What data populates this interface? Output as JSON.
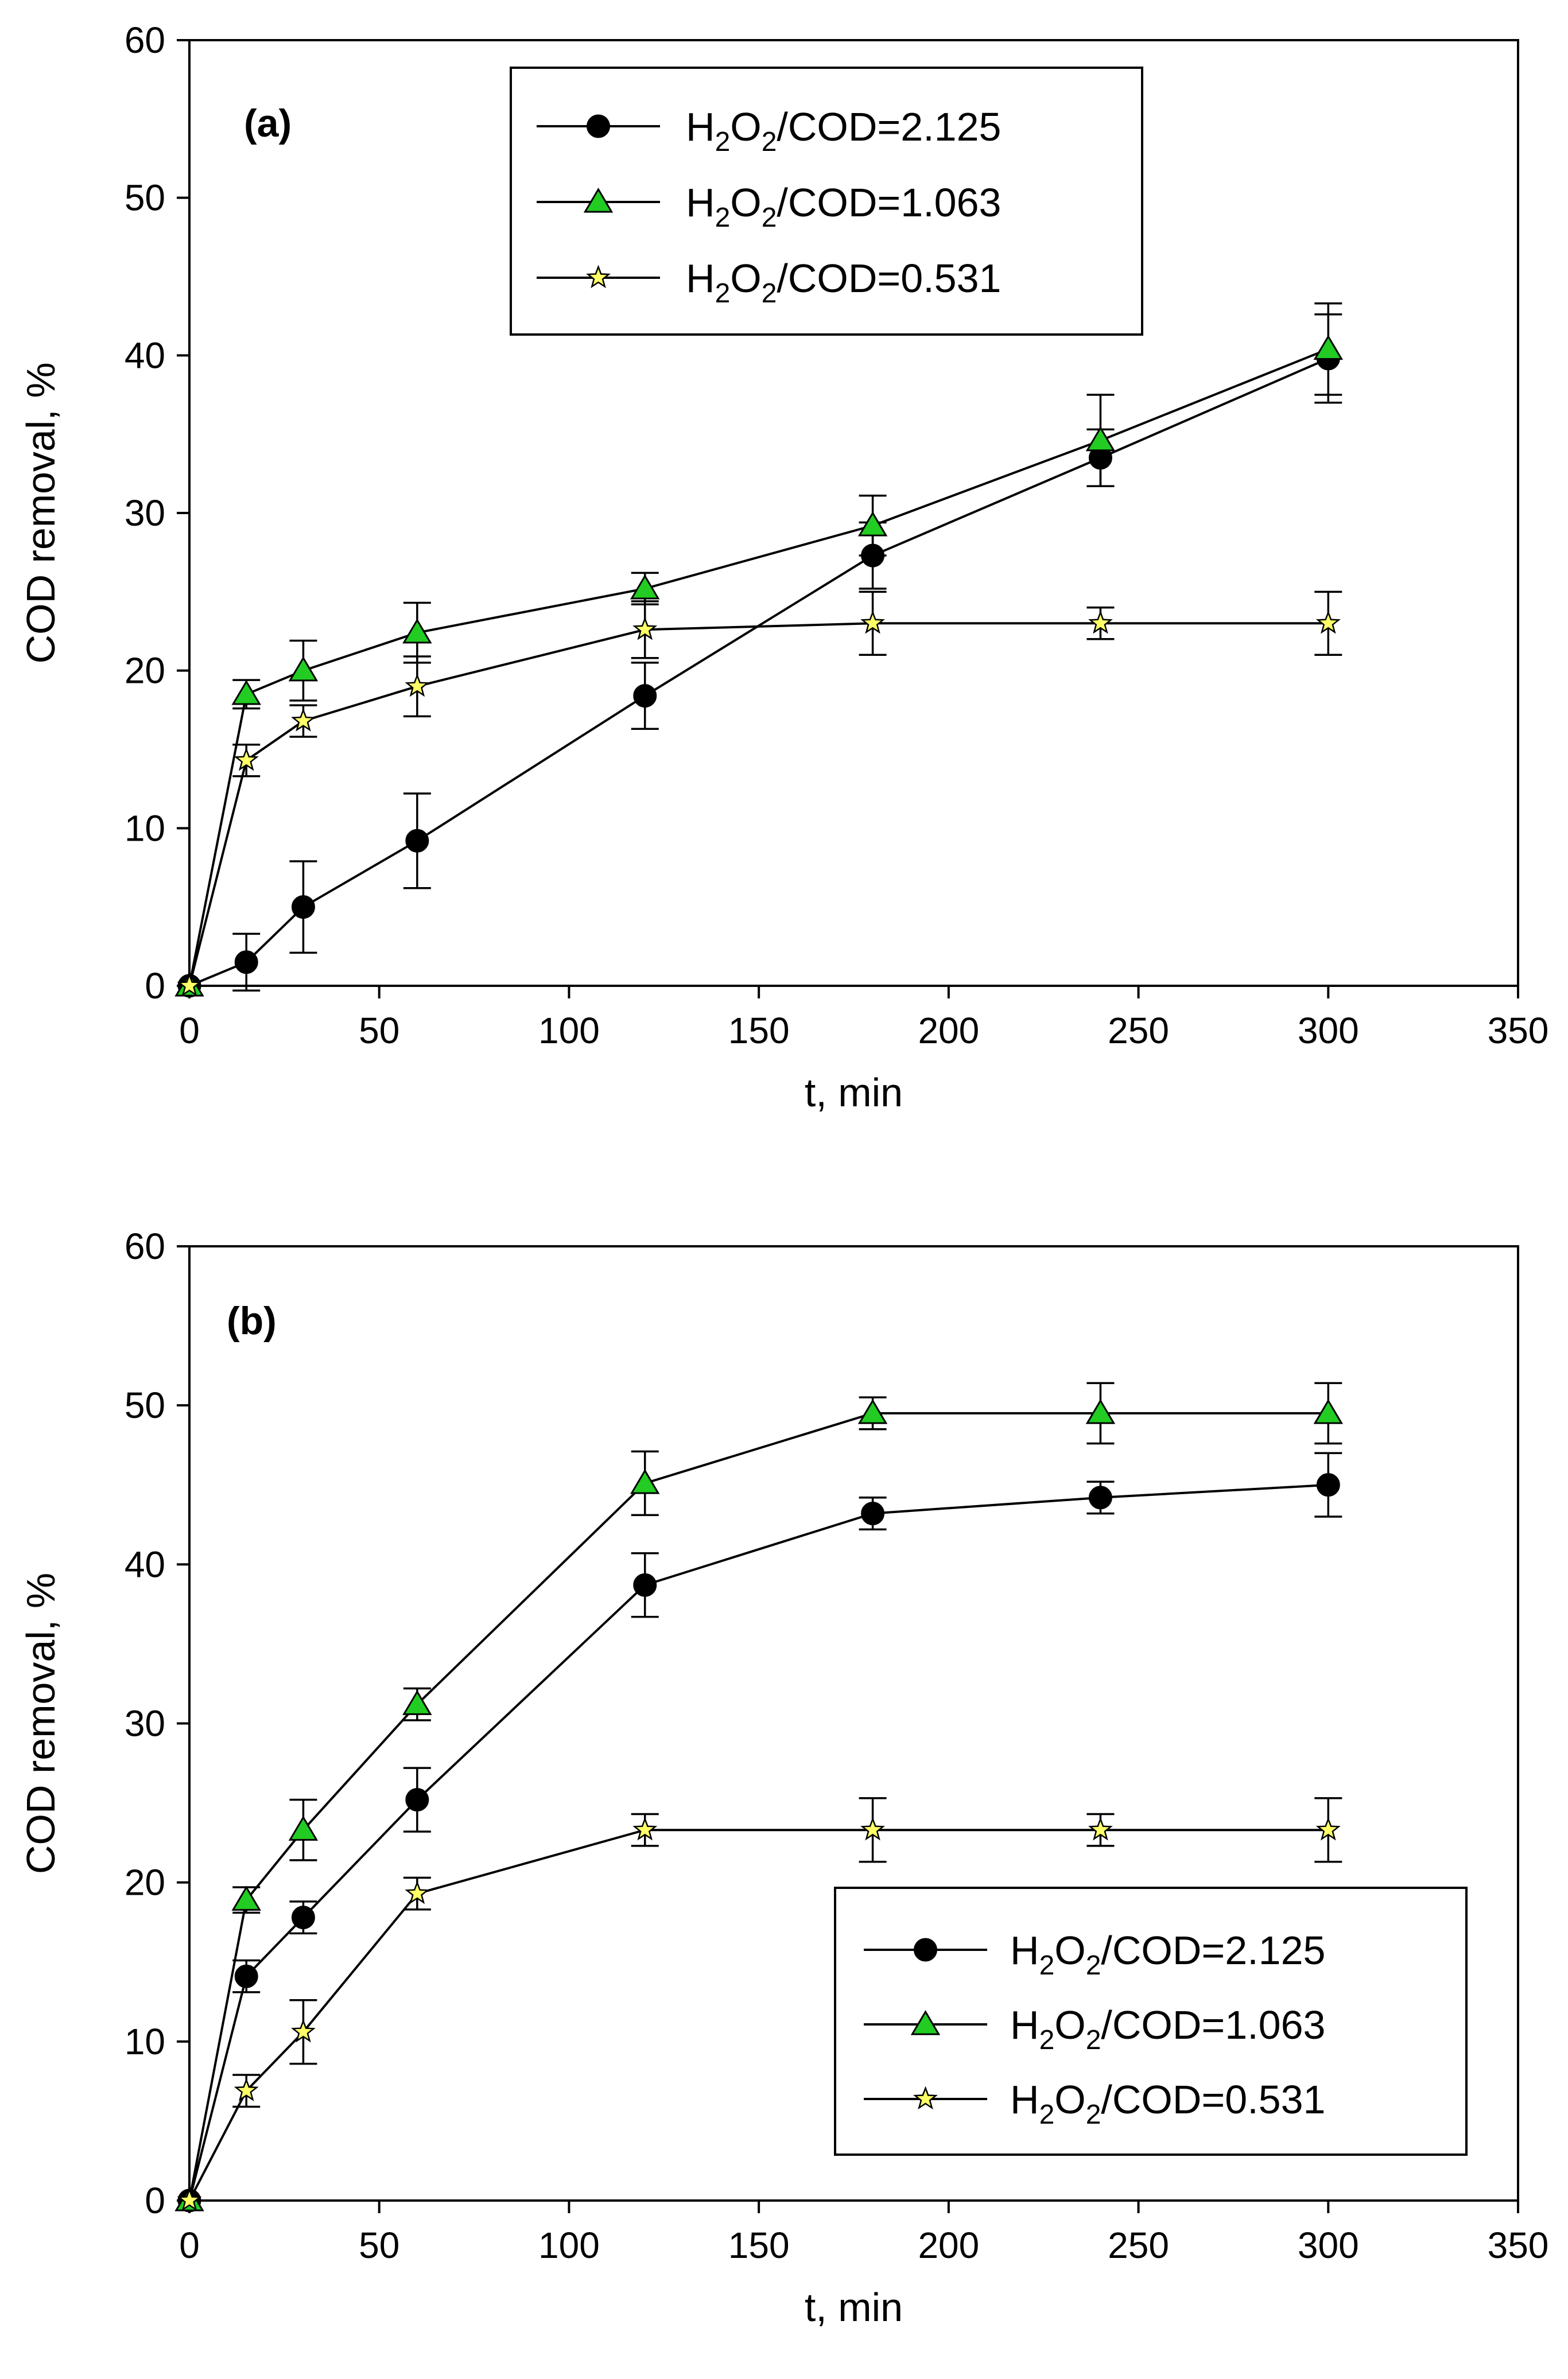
{
  "chart_data": [
    {
      "type": "line",
      "panel_label": "(a)",
      "xlabel": "t, min",
      "ylabel": "COD removal, %",
      "xlim": [
        0,
        350
      ],
      "ylim": [
        0,
        60
      ],
      "x_ticks": [
        0,
        50,
        100,
        150,
        200,
        250,
        300,
        350
      ],
      "y_ticks": [
        0,
        10,
        20,
        30,
        40,
        50,
        60
      ],
      "x": [
        0,
        15,
        30,
        60,
        120,
        180,
        240,
        300
      ],
      "legend_position": "top-center",
      "series": [
        {
          "name": "H2O2/COD=2.125",
          "label_main": "H",
          "label_s1": "2",
          "label_mid": "O",
          "label_s2": "2",
          "label_rest": "/COD=2.125",
          "marker": "circle",
          "color": "#000000",
          "values": [
            0,
            1.5,
            5.0,
            9.2,
            18.4,
            27.3,
            33.5,
            39.8
          ],
          "errors": [
            0,
            1.8,
            2.9,
            3.0,
            2.1,
            2.1,
            1.8,
            2.8
          ]
        },
        {
          "name": "H2O2/COD=1.063",
          "label_main": "H",
          "label_s1": "2",
          "label_mid": "O",
          "label_s2": "2",
          "label_rest": "/COD=1.063",
          "marker": "triangle",
          "color": "#22cc22",
          "values": [
            0,
            18.5,
            20.0,
            22.4,
            25.2,
            29.2,
            34.6,
            40.4
          ],
          "errors": [
            0,
            0.9,
            1.9,
            1.9,
            1.0,
            1.9,
            2.9,
            2.9
          ]
        },
        {
          "name": "H2O2/COD=0.531",
          "label_main": "H",
          "label_s1": "2",
          "label_mid": "O",
          "label_s2": "2",
          "label_rest": "/COD=0.531",
          "marker": "star",
          "color": "#ffff66",
          "values": [
            0,
            14.3,
            16.8,
            19.0,
            22.6,
            23.0,
            23.0,
            23.0
          ],
          "errors": [
            0,
            1.0,
            1.0,
            1.9,
            1.8,
            2.0,
            1.0,
            2.0
          ]
        }
      ]
    },
    {
      "type": "line",
      "panel_label": "(b)",
      "xlabel": "t, min",
      "ylabel": "COD removal, %",
      "xlim": [
        0,
        350
      ],
      "ylim": [
        0,
        60
      ],
      "x_ticks": [
        0,
        50,
        100,
        150,
        200,
        250,
        300,
        350
      ],
      "y_ticks": [
        0,
        10,
        20,
        30,
        40,
        50,
        60
      ],
      "x": [
        0,
        15,
        30,
        60,
        120,
        180,
        240,
        300
      ],
      "legend_position": "bottom-right",
      "series": [
        {
          "name": "H2O2/COD=2.125",
          "label_main": "H",
          "label_s1": "2",
          "label_mid": "O",
          "label_s2": "2",
          "label_rest": "/COD=2.125",
          "marker": "circle",
          "color": "#000000",
          "values": [
            0,
            14.1,
            17.8,
            25.2,
            38.7,
            43.2,
            44.2,
            45.0
          ],
          "errors": [
            0,
            1.0,
            1.0,
            2.0,
            2.0,
            1.0,
            1.0,
            2.0
          ]
        },
        {
          "name": "H2O2/COD=1.063",
          "label_main": "H",
          "label_s1": "2",
          "label_mid": "O",
          "label_s2": "2",
          "label_rest": "/COD=1.063",
          "marker": "triangle",
          "color": "#22cc22",
          "values": [
            0,
            18.9,
            23.3,
            31.2,
            45.1,
            49.5,
            49.5,
            49.5
          ],
          "errors": [
            0,
            0.8,
            1.9,
            1.0,
            2.0,
            1.0,
            1.9,
            1.9
          ]
        },
        {
          "name": "H2O2/COD=0.531",
          "label_main": "H",
          "label_s1": "2",
          "label_mid": "O",
          "label_s2": "2",
          "label_rest": "/COD=0.531",
          "marker": "star",
          "color": "#ffff66",
          "values": [
            0,
            6.9,
            10.6,
            19.3,
            23.3,
            23.3,
            23.3,
            23.3
          ],
          "errors": [
            0,
            1.0,
            2.0,
            1.0,
            1.0,
            2.0,
            1.0,
            2.0
          ]
        }
      ]
    }
  ]
}
